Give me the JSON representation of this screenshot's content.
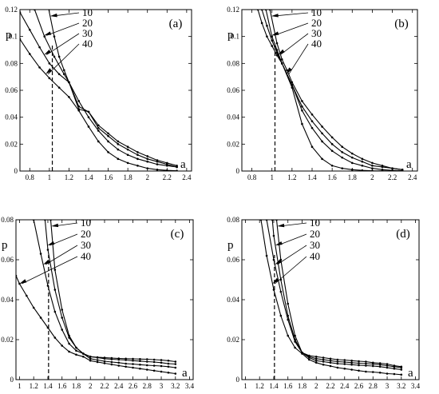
{
  "chart_data": [
    {
      "panel": "(a)",
      "type": "line",
      "ylabel": "p",
      "xlabel": "a",
      "xlim": [
        0.7,
        2.45
      ],
      "ylim": [
        0,
        0.12
      ],
      "xticks": [
        "0.8",
        "1",
        "1.2",
        "1.4",
        "1.6",
        "1.8",
        "2",
        "2.2",
        "2.4"
      ],
      "xtick_values": [
        0.8,
        1,
        1.2,
        1.4,
        1.6,
        1.8,
        2,
        2.2,
        2.4
      ],
      "yticks": [
        "0",
        "0.02",
        "0.04",
        "0.06",
        "0.08",
        "0.1",
        "0.12"
      ],
      "ytick_values": [
        0,
        0.02,
        0.04,
        0.06,
        0.08,
        0.1,
        0.12
      ],
      "vline_x": 1.03,
      "legend": [
        "10",
        "20",
        "30",
        "40"
      ],
      "series": [
        {
          "name": "10",
          "x": [
            0.98,
            1.05,
            1.1,
            1.15,
            1.2,
            1.3,
            1.4,
            1.5,
            1.6,
            1.7,
            1.8,
            1.9,
            2.0,
            2.1,
            2.2,
            2.3
          ],
          "y": [
            0.125,
            0.1,
            0.085,
            0.075,
            0.066,
            0.052,
            0.04,
            0.03,
            0.022,
            0.016,
            0.012,
            0.009,
            0.007,
            0.005,
            0.004,
            0.003
          ]
        },
        {
          "name": "20",
          "x": [
            0.85,
            0.95,
            1.05,
            1.15,
            1.2,
            1.3,
            1.4,
            1.5,
            1.6,
            1.7,
            1.8,
            1.9,
            2.0,
            2.1,
            2.2,
            2.3
          ],
          "y": [
            0.12,
            0.1,
            0.085,
            0.072,
            0.066,
            0.048,
            0.044,
            0.034,
            0.028,
            0.022,
            0.018,
            0.014,
            0.011,
            0.008,
            0.006,
            0.004
          ]
        },
        {
          "name": "30",
          "x": [
            0.7,
            0.8,
            0.9,
            1.0,
            1.1,
            1.2,
            1.3,
            1.4,
            1.5,
            1.6,
            1.7,
            1.8,
            1.9,
            2.0,
            2.1,
            2.2,
            2.3
          ],
          "y": [
            0.118,
            0.105,
            0.092,
            0.08,
            0.072,
            0.066,
            0.046,
            0.044,
            0.032,
            0.026,
            0.02,
            0.016,
            0.012,
            0.009,
            0.007,
            0.005,
            0.003
          ]
        },
        {
          "name": "40",
          "x": [
            0.7,
            0.8,
            0.9,
            1.0,
            1.1,
            1.2,
            1.3,
            1.4,
            1.5,
            1.6,
            1.7,
            1.8,
            1.9,
            2.0,
            2.1,
            2.2,
            2.3
          ],
          "y": [
            0.098,
            0.087,
            0.077,
            0.069,
            0.062,
            0.055,
            0.045,
            0.033,
            0.022,
            0.014,
            0.009,
            0.006,
            0.004,
            0.002,
            0.001,
            0.0005,
            0.0002
          ]
        }
      ]
    },
    {
      "panel": "(b)",
      "type": "line",
      "ylabel": "p",
      "xlabel": "a",
      "xlim": [
        0.7,
        2.45
      ],
      "ylim": [
        0,
        0.12
      ],
      "xticks": [
        "0.8",
        "1",
        "1.2",
        "1.4",
        "1.6",
        "1.8",
        "2",
        "2.2",
        "2.4"
      ],
      "xtick_values": [
        0.8,
        1,
        1.2,
        1.4,
        1.6,
        1.8,
        2,
        2.2,
        2.4
      ],
      "yticks": [
        "0",
        "0.02",
        "0.04",
        "0.06",
        "0.08",
        "0.1",
        "0.12"
      ],
      "ytick_values": [
        0,
        0.02,
        0.04,
        0.06,
        0.08,
        0.1,
        0.12
      ],
      "vline_x": 1.03,
      "legend": [
        "10",
        "20",
        "30",
        "40"
      ],
      "series": [
        {
          "name": "10",
          "x": [
            0.98,
            1.05,
            1.1,
            1.15,
            1.2,
            1.3,
            1.4,
            1.5,
            1.6,
            1.7,
            1.8,
            1.9,
            2.0,
            2.1,
            2.2,
            2.3
          ],
          "y": [
            0.12,
            0.095,
            0.083,
            0.075,
            0.066,
            0.052,
            0.042,
            0.033,
            0.025,
            0.018,
            0.013,
            0.009,
            0.006,
            0.004,
            0.002,
            0.001
          ]
        },
        {
          "name": "20",
          "x": [
            0.94,
            1.0,
            1.05,
            1.1,
            1.2,
            1.3,
            1.4,
            1.5,
            1.6,
            1.7,
            1.8,
            1.9,
            2.0,
            2.1,
            2.2,
            2.3
          ],
          "y": [
            0.12,
            0.1,
            0.09,
            0.08,
            0.064,
            0.048,
            0.037,
            0.028,
            0.02,
            0.014,
            0.01,
            0.007,
            0.004,
            0.003,
            0.002,
            0.001
          ]
        },
        {
          "name": "30",
          "x": [
            0.9,
            0.95,
            1.0,
            1.05,
            1.1,
            1.2,
            1.3,
            1.4,
            1.5,
            1.6,
            1.7,
            1.8,
            1.9,
            2.0,
            2.1,
            2.2,
            2.3
          ],
          "y": [
            0.12,
            0.108,
            0.097,
            0.088,
            0.08,
            0.064,
            0.045,
            0.032,
            0.022,
            0.015,
            0.01,
            0.006,
            0.004,
            0.002,
            0.001,
            0.0005,
            0.0002
          ]
        },
        {
          "name": "40",
          "x": [
            0.86,
            0.9,
            0.95,
            1.0,
            1.05,
            1.1,
            1.2,
            1.3,
            1.4,
            1.5,
            1.6,
            1.7,
            1.8,
            1.9,
            2.0,
            2.1,
            2.2,
            2.3
          ],
          "y": [
            0.12,
            0.11,
            0.1,
            0.093,
            0.086,
            0.08,
            0.062,
            0.035,
            0.018,
            0.009,
            0.004,
            0.002,
            0.001,
            0.0005,
            0.0002,
            0.0001,
            0,
            0
          ]
        }
      ]
    },
    {
      "panel": "(c)",
      "type": "line",
      "ylabel": "p",
      "xlabel": "a",
      "xlim": [
        0.95,
        3.45
      ],
      "ylim": [
        0,
        0.08
      ],
      "xticks": [
        "1",
        "1.2",
        "1.4",
        "1.6",
        "1.8",
        "2",
        "2.2",
        "2.4",
        "2.6",
        "2.8",
        "3",
        "3.2",
        "3.4"
      ],
      "xtick_values": [
        1,
        1.2,
        1.4,
        1.6,
        1.8,
        2,
        2.2,
        2.4,
        2.6,
        2.8,
        3,
        3.2,
        3.4
      ],
      "yticks": [
        "0",
        "0.02",
        "0.04",
        "0.06",
        "0.08"
      ],
      "ytick_values": [
        0,
        0.02,
        0.04,
        0.06,
        0.08
      ],
      "vline_x": 1.41,
      "legend": [
        "10",
        "20",
        "30",
        "40"
      ],
      "series": [
        {
          "name": "10",
          "x": [
            1.44,
            1.5,
            1.6,
            1.7,
            1.8,
            1.9,
            2.0,
            2.1,
            2.2,
            2.3,
            2.4,
            2.5,
            2.6,
            2.7,
            2.8,
            2.9,
            3.0,
            3.1,
            3.2
          ],
          "y": [
            0.08,
            0.055,
            0.035,
            0.022,
            0.016,
            0.013,
            0.0115,
            0.0112,
            0.011,
            0.0108,
            0.0106,
            0.0105,
            0.0104,
            0.0103,
            0.0102,
            0.01,
            0.0098,
            0.0095,
            0.009
          ]
        },
        {
          "name": "20",
          "x": [
            1.36,
            1.4,
            1.5,
            1.6,
            1.7,
            1.8,
            1.9,
            2.0,
            2.1,
            2.2,
            2.3,
            2.4,
            2.5,
            2.6,
            2.7,
            2.8,
            2.9,
            3.0,
            3.1,
            3.2
          ],
          "y": [
            0.08,
            0.065,
            0.045,
            0.031,
            0.021,
            0.016,
            0.013,
            0.0115,
            0.011,
            0.0105,
            0.0102,
            0.01,
            0.0098,
            0.0095,
            0.0093,
            0.009,
            0.0088,
            0.0085,
            0.008,
            0.0078
          ]
        },
        {
          "name": "30",
          "x": [
            1.2,
            1.3,
            1.4,
            1.5,
            1.6,
            1.7,
            1.8,
            1.9,
            2.0,
            2.1,
            2.2,
            2.3,
            2.4,
            2.5,
            2.6,
            2.7,
            2.8,
            2.9,
            3.0,
            3.1,
            3.2
          ],
          "y": [
            0.08,
            0.063,
            0.047,
            0.034,
            0.025,
            0.018,
            0.0145,
            0.013,
            0.0105,
            0.0098,
            0.0092,
            0.0088,
            0.0085,
            0.008,
            0.0078,
            0.0075,
            0.0072,
            0.007,
            0.0068,
            0.0065,
            0.006
          ]
        },
        {
          "name": "40",
          "x": [
            0.95,
            1.0,
            1.1,
            1.2,
            1.3,
            1.4,
            1.5,
            1.6,
            1.7,
            1.8,
            1.9,
            2.0,
            2.1,
            2.2,
            2.3,
            2.4,
            2.5,
            2.6,
            2.7,
            2.8,
            2.9,
            3.0,
            3.1,
            3.2
          ],
          "y": [
            0.052,
            0.048,
            0.042,
            0.036,
            0.031,
            0.026,
            0.021,
            0.017,
            0.014,
            0.0125,
            0.0115,
            0.0095,
            0.0088,
            0.0082,
            0.0076,
            0.007,
            0.0065,
            0.006,
            0.0055,
            0.005,
            0.0045,
            0.004,
            0.0035,
            0.003
          ]
        }
      ]
    },
    {
      "panel": "(d)",
      "type": "line",
      "ylabel": "p",
      "xlabel": "a",
      "xlim": [
        0.95,
        3.45
      ],
      "ylim": [
        0,
        0.08
      ],
      "xticks": [
        "1",
        "1.2",
        "1.4",
        "1.6",
        "1.8",
        "2",
        "2.2",
        "2.4",
        "2.6",
        "2.8",
        "3",
        "3.2",
        "3.4"
      ],
      "xtick_values": [
        1,
        1.2,
        1.4,
        1.6,
        1.8,
        2,
        2.2,
        2.4,
        2.6,
        2.8,
        3,
        3.2,
        3.4
      ],
      "yticks": [
        "0",
        "0.02",
        "0.04",
        "0.06",
        "0.08"
      ],
      "ytick_values": [
        0,
        0.02,
        0.04,
        0.06,
        0.08
      ],
      "vline_x": 1.41,
      "legend": [
        "10",
        "20",
        "30",
        "40"
      ],
      "series": [
        {
          "name": "10",
          "x": [
            1.44,
            1.5,
            1.6,
            1.7,
            1.8,
            1.9,
            2.0,
            2.1,
            2.2,
            2.3,
            2.4,
            2.5,
            2.6,
            2.7,
            2.8,
            2.9,
            3.0,
            3.1,
            3.2
          ],
          "y": [
            0.08,
            0.06,
            0.038,
            0.022,
            0.0135,
            0.012,
            0.0115,
            0.011,
            0.0105,
            0.01,
            0.0098,
            0.0095,
            0.0092,
            0.009,
            0.0085,
            0.0082,
            0.0078,
            0.007,
            0.0065
          ]
        },
        {
          "name": "20",
          "x": [
            1.38,
            1.4,
            1.5,
            1.6,
            1.7,
            1.8,
            1.9,
            2.0,
            2.1,
            2.2,
            2.3,
            2.4,
            2.5,
            2.6,
            2.7,
            2.8,
            2.9,
            3.0,
            3.1,
            3.2
          ],
          "y": [
            0.08,
            0.072,
            0.05,
            0.032,
            0.02,
            0.0135,
            0.0115,
            0.0105,
            0.01,
            0.0095,
            0.009,
            0.0088,
            0.0085,
            0.0082,
            0.008,
            0.0078,
            0.0075,
            0.007,
            0.0065,
            0.006
          ]
        },
        {
          "name": "30",
          "x": [
            1.3,
            1.4,
            1.5,
            1.6,
            1.7,
            1.8,
            1.9,
            2.0,
            2.1,
            2.2,
            2.3,
            2.4,
            2.5,
            2.6,
            2.7,
            2.8,
            2.9,
            3.0,
            3.1,
            3.2
          ],
          "y": [
            0.08,
            0.06,
            0.044,
            0.03,
            0.019,
            0.0135,
            0.011,
            0.0095,
            0.009,
            0.0085,
            0.008,
            0.0078,
            0.0075,
            0.0072,
            0.007,
            0.0068,
            0.0065,
            0.006,
            0.0055,
            0.005
          ]
        },
        {
          "name": "40",
          "x": [
            1.22,
            1.3,
            1.4,
            1.5,
            1.6,
            1.7,
            1.8,
            1.9,
            2.0,
            2.1,
            2.2,
            2.3,
            2.4,
            2.5,
            2.6,
            2.7,
            2.8,
            2.9,
            3.0,
            3.1,
            3.2
          ],
          "y": [
            0.08,
            0.062,
            0.045,
            0.032,
            0.022,
            0.016,
            0.013,
            0.01,
            0.0085,
            0.0075,
            0.0068,
            0.006,
            0.0055,
            0.005,
            0.0045,
            0.004,
            0.0038,
            0.0035,
            0.003,
            0.0028,
            0.0025
          ]
        }
      ]
    }
  ]
}
